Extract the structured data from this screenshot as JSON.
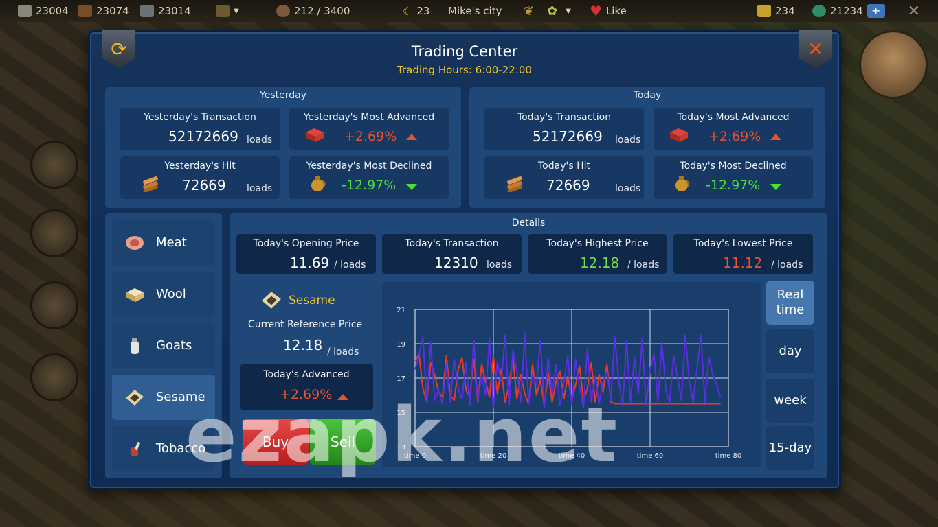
{
  "topbar": {
    "resources": [
      {
        "icon": "stone-icon",
        "value": "23004"
      },
      {
        "icon": "wood-icon",
        "value": "23074"
      },
      {
        "icon": "iron-icon",
        "value": "23014"
      }
    ],
    "population": "212 / 3400",
    "day_count": "23",
    "city_name": "Mike's city",
    "like_label": "Like",
    "gold": "234",
    "jade": "21234",
    "plus_label": "+"
  },
  "panel": {
    "title": "Trading Center",
    "hours": "Trading Hours: 6:00-22:00"
  },
  "yesterday": {
    "label": "Yesterday",
    "transaction_label": "Yesterday's Transaction",
    "transaction_value": "52172669",
    "transaction_unit": "loads",
    "advanced_label": "Yesterday's Most Advanced",
    "advanced_pct": "+2.69%",
    "hit_label": "Yesterday's Hit",
    "hit_value": "72669",
    "hit_unit": "loads",
    "declined_label": "Yesterday's Most Declined",
    "declined_pct": "-12.97%"
  },
  "today": {
    "label": "Today",
    "transaction_label": "Today's Transaction",
    "transaction_value": "52172669",
    "transaction_unit": "loads",
    "advanced_label": "Today's Most Advanced",
    "advanced_pct": "+2.69%",
    "hit_label": "Today's Hit",
    "hit_value": "72669",
    "hit_unit": "loads",
    "declined_label": "Today's Most Declined",
    "declined_pct": "-12.97%"
  },
  "commodities": [
    {
      "label": "Meat",
      "icon": "meat-icon"
    },
    {
      "label": "Wool",
      "icon": "wool-icon"
    },
    {
      "label": "Goats",
      "icon": "goats-icon"
    },
    {
      "label": "Sesame",
      "icon": "sesame-icon"
    },
    {
      "label": "Tobacco",
      "icon": "tobacco-icon"
    }
  ],
  "details": {
    "label": "Details",
    "opening_label": "Today's Opening Price",
    "opening_value": "11.69",
    "opening_unit": "/ loads",
    "transaction_label": "Today's Transaction",
    "transaction_value": "12310",
    "transaction_unit": "loads",
    "highest_label": "Today's Highest Price",
    "highest_value": "12.18",
    "highest_unit": "/ loads",
    "lowest_label": "Today's Lowest Price",
    "lowest_value": "11.12",
    "lowest_unit": "/ loads",
    "selected_name": "Sesame",
    "ref_label": "Current Reference Price",
    "ref_value": "12.18",
    "ref_unit": "/ loads",
    "adv_label": "Today's Advanced",
    "adv_pct": "+2.69%",
    "buy_label": "Buy",
    "sell_label": "Sell"
  },
  "ranges": [
    {
      "label": "Real time",
      "active": true
    },
    {
      "label": "day",
      "active": false
    },
    {
      "label": "week",
      "active": false
    },
    {
      "label": "15-day",
      "active": false
    }
  ],
  "colors": {
    "up": "#e8532b",
    "down": "#4fde3a",
    "accent_yellow": "#f0c62a",
    "series_red": "#e83a2a",
    "series_blue": "#5b2ee0"
  },
  "watermark": "ezapk.net",
  "chart_data": {
    "type": "line",
    "xlabel": "",
    "ylabel": "",
    "xlim": [
      0,
      80
    ],
    "ylim": [
      13,
      21
    ],
    "x_ticks": [
      "time 0",
      "time 20",
      "time 40",
      "time 60",
      "time 80"
    ],
    "y_ticks": [
      "13",
      "15",
      "17",
      "19",
      "21"
    ],
    "grid": true,
    "series": [
      {
        "color": "#e83a2a",
        "x": [
          0,
          1,
          2,
          3,
          4,
          5,
          6,
          7,
          8,
          9,
          10,
          11,
          12,
          13,
          14,
          15,
          16,
          17,
          18,
          19,
          20,
          21,
          22,
          23,
          24,
          25,
          26,
          27,
          28,
          29,
          30,
          31,
          32,
          33,
          34,
          35,
          36,
          37,
          38,
          39,
          40,
          41,
          42,
          43,
          44,
          45,
          46,
          47,
          48,
          49,
          50,
          51,
          52,
          53,
          54,
          55,
          56,
          57,
          58,
          59,
          60,
          61,
          62,
          63,
          64,
          65,
          66,
          67,
          68,
          69,
          70,
          71,
          72,
          73,
          74,
          75,
          76,
          77,
          78
        ],
        "y": [
          18,
          18.4,
          16.4,
          15.6,
          17.9,
          17.2,
          16.2,
          15.9,
          18.3,
          16,
          15.7,
          17.5,
          18.2,
          16.3,
          15.9,
          18.1,
          15.6,
          17.8,
          16.8,
          15.9,
          18.3,
          16.1,
          17.5,
          15.6,
          16.6,
          18.2,
          15.8,
          17.2,
          16.1,
          15.5,
          17.8,
          16,
          16.9,
          15.4,
          17.3,
          15.6,
          16.8,
          17.4,
          15.8,
          17.1,
          15.7,
          16.6,
          17.7,
          15.7,
          16.4,
          17.9,
          15.6,
          17.2,
          16.2,
          17.8,
          15.6,
          15.5,
          15.5,
          15.5,
          15.5,
          15.5,
          15.5,
          15.5,
          15.5,
          15.5,
          15.5,
          15.5,
          15.5,
          15.5,
          15.5,
          15.5,
          15.5,
          15.5,
          15.5,
          15.5,
          15.5,
          15.5,
          15.5,
          15.5,
          15.5,
          15.5,
          15.5,
          15.5,
          15.5
        ]
      },
      {
        "color": "#5b2ee0",
        "x": [
          0,
          1,
          2,
          3,
          4,
          5,
          6,
          7,
          8,
          9,
          10,
          11,
          12,
          13,
          14,
          15,
          16,
          17,
          18,
          19,
          20,
          21,
          22,
          23,
          24,
          25,
          26,
          27,
          28,
          29,
          30,
          31,
          32,
          33,
          34,
          35,
          36,
          37,
          38,
          39,
          40,
          41,
          42,
          43,
          44,
          45,
          46,
          47,
          48,
          49,
          50,
          51,
          52,
          53,
          54,
          55,
          56,
          57,
          58,
          59,
          60,
          61,
          62,
          63,
          64,
          65,
          66,
          67,
          68,
          69,
          70,
          71,
          72,
          73,
          74,
          75,
          76,
          77,
          78
        ],
        "y": [
          17.5,
          18.3,
          19.4,
          15.6,
          19.1,
          15.7,
          16.3,
          15.5,
          17.8,
          15.6,
          18.1,
          16.4,
          15.8,
          17.9,
          15.4,
          19.2,
          15.7,
          17.2,
          16,
          19.3,
          15.3,
          17.9,
          16.8,
          19.5,
          15.4,
          18.6,
          17.4,
          15.6,
          19.6,
          15.5,
          17.2,
          16.6,
          19.2,
          15.3,
          18.2,
          16.1,
          17.8,
          15.4,
          16.7,
          18.3,
          15.4,
          18.1,
          16.5,
          15.3,
          18.7,
          15.6,
          17.1,
          15.5,
          16.8,
          17.4,
          15.7,
          19.4,
          16.9,
          15.4,
          19.2,
          15.6,
          18.2,
          16.1,
          19.3,
          15.4,
          17.5,
          18.4,
          15.6,
          19.1,
          16.4,
          15.5,
          18.3,
          17.1,
          15.7,
          19.5,
          16.8,
          15.6,
          17.6,
          19.5,
          15.6,
          18.2,
          17.2,
          16.6,
          15.9
        ]
      }
    ]
  }
}
